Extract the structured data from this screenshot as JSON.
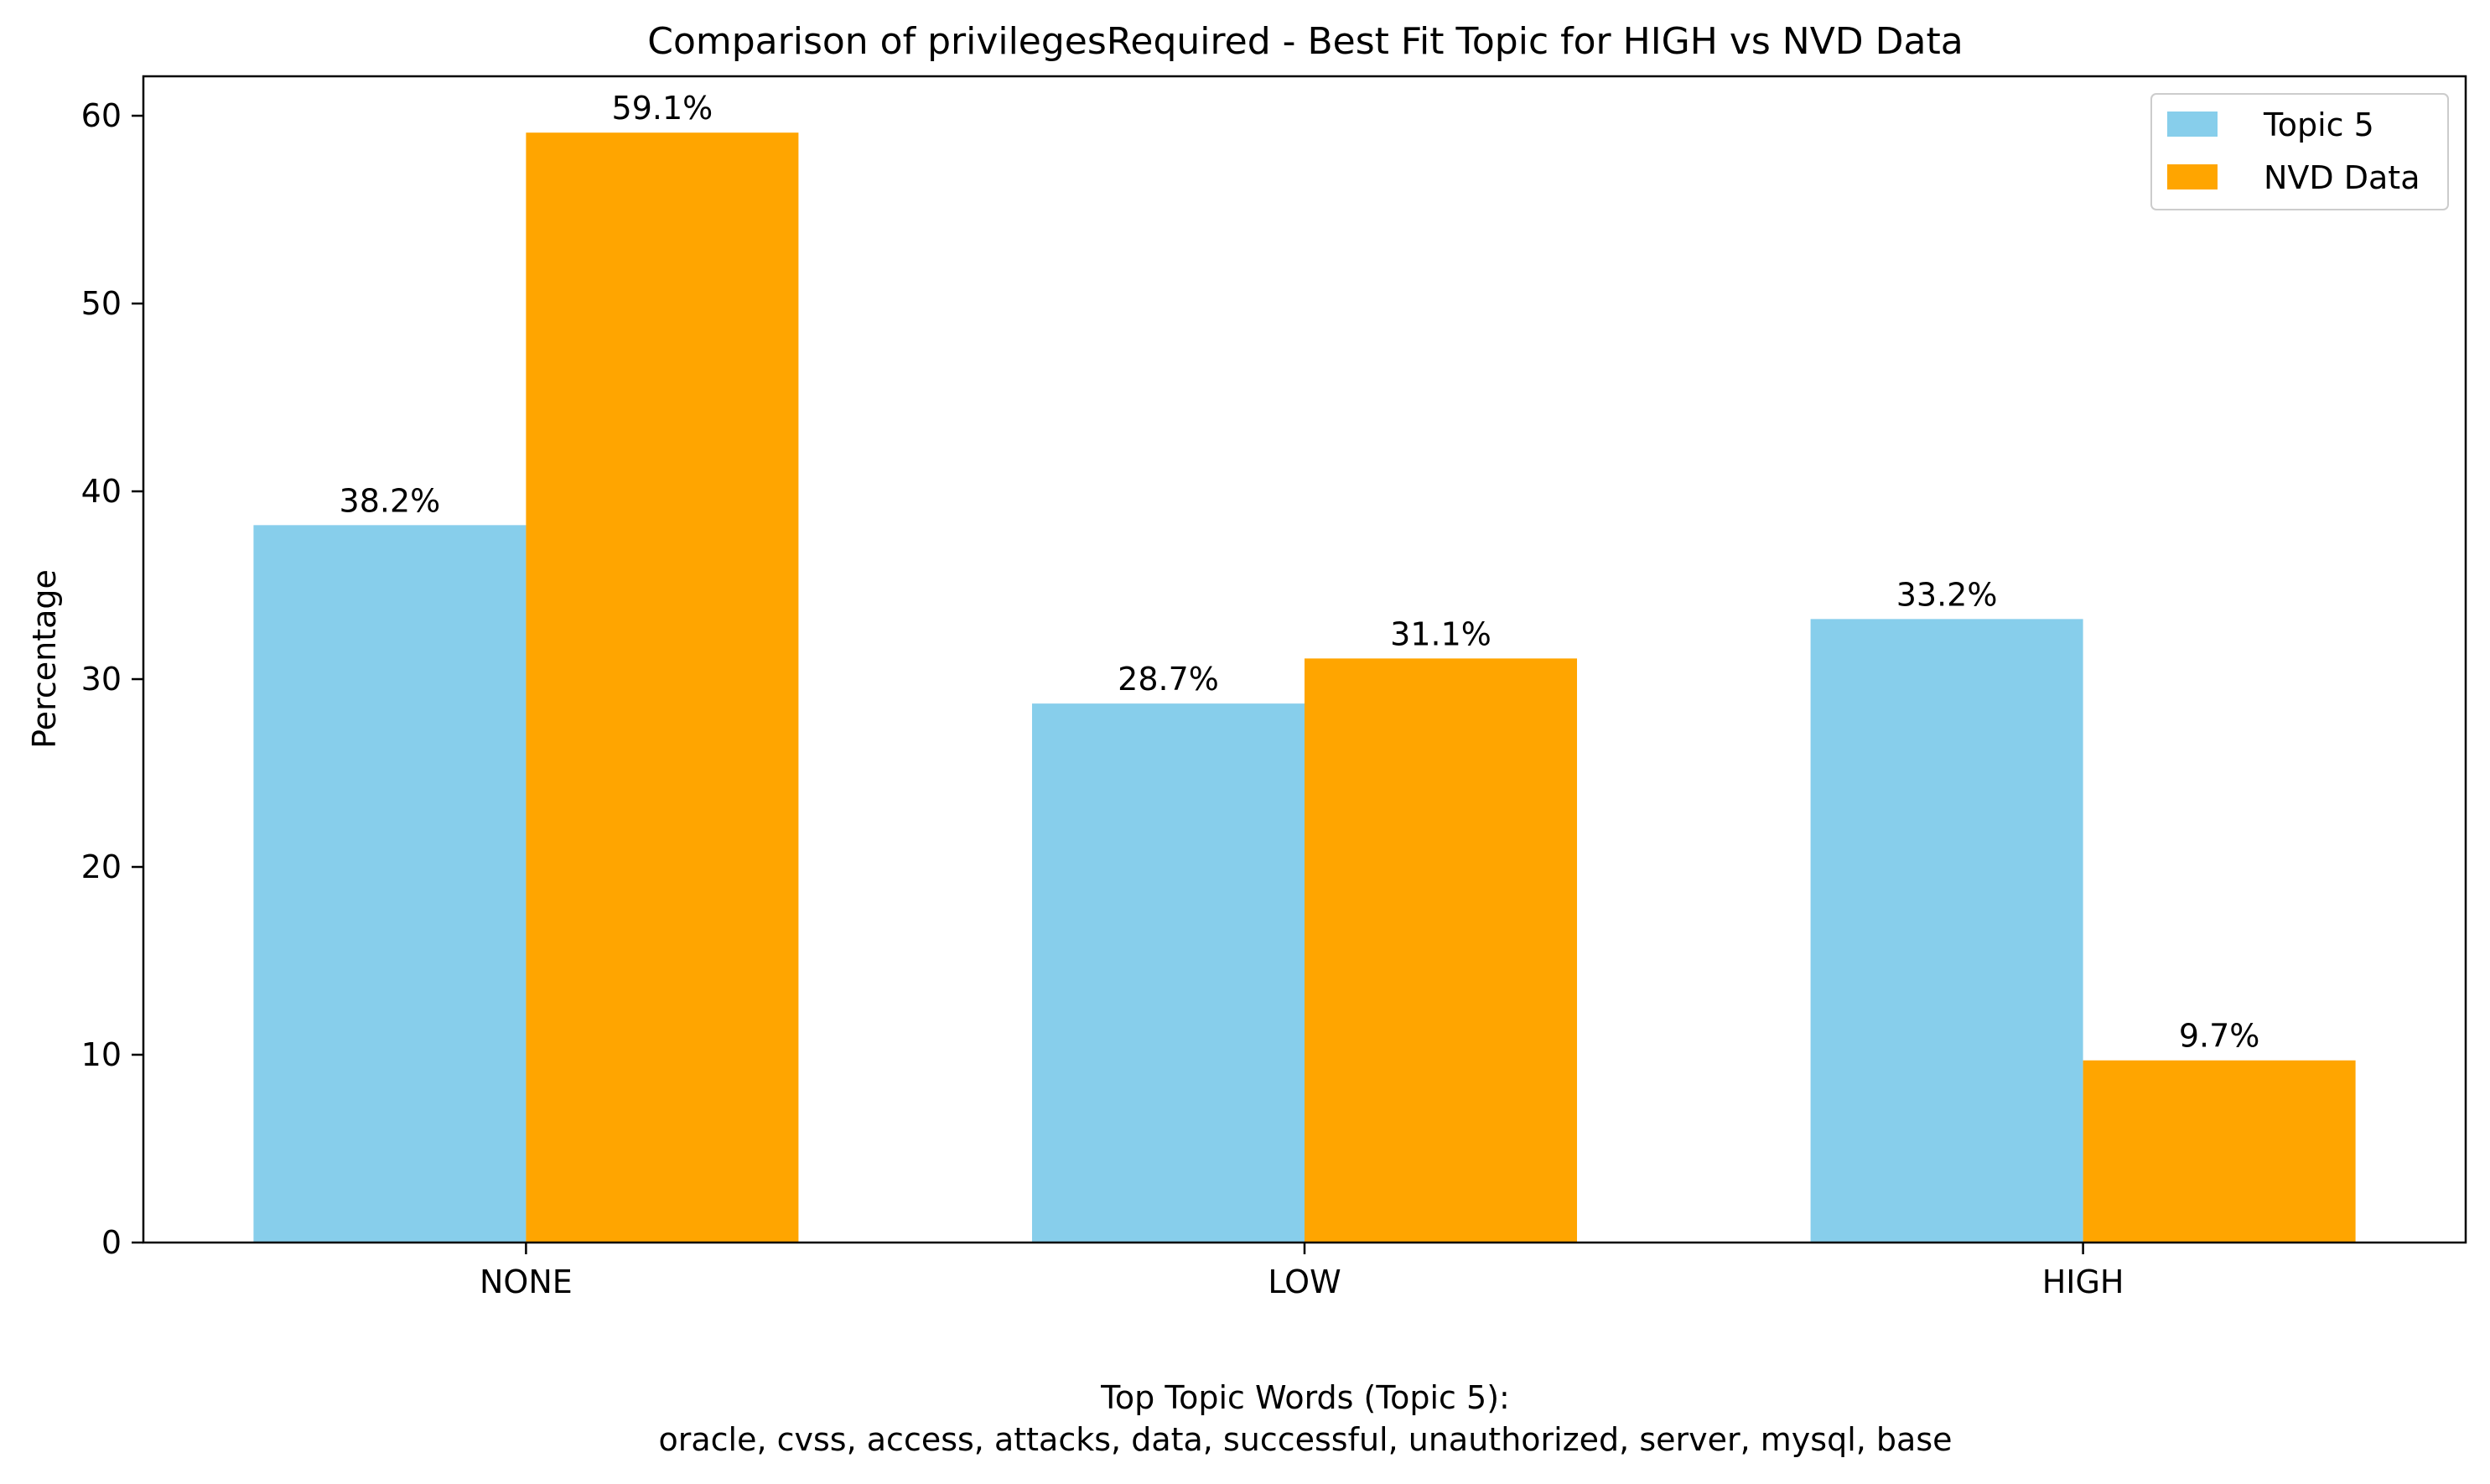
{
  "chart_data": {
    "type": "bar",
    "title": "Comparison of privilegesRequired - Best Fit Topic for HIGH vs NVD Data",
    "xlabel": "",
    "ylabel": "Percentage",
    "categories": [
      "NONE",
      "LOW",
      "HIGH"
    ],
    "series": [
      {
        "name": "Topic 5",
        "color": "#87ceeb",
        "values": [
          38.2,
          28.7,
          33.2
        ],
        "labels": [
          "38.2%",
          "28.7%",
          "33.2%"
        ]
      },
      {
        "name": "NVD Data",
        "color": "#ffa500",
        "values": [
          59.1,
          31.1,
          9.7
        ],
        "labels": [
          "59.1%",
          "31.1%",
          "9.7%"
        ]
      }
    ],
    "ylim": [
      0,
      62.1
    ],
    "yticks": [
      0,
      10,
      20,
      30,
      40,
      50,
      60
    ],
    "ytick_labels": [
      "0",
      "10",
      "20",
      "30",
      "40",
      "50",
      "60"
    ],
    "grid": false,
    "legend_position": "top-right",
    "caption": {
      "line1": "Top Topic Words (Topic 5):",
      "line2": "oracle,  cvss,  access,  attacks,  data,  successful,  unauthorized,  server,  mysql,  base"
    }
  }
}
